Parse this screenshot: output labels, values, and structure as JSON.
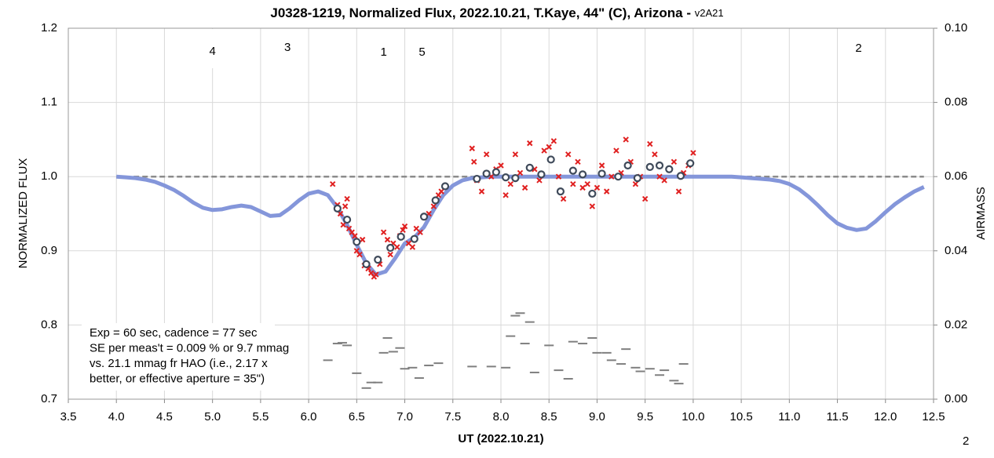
{
  "chart_data": {
    "type": "line",
    "title": "J0328-1219, Normalized Flux, 2022.10.21, T.Kaye, 44\" (C), Arizona - ",
    "subtitle": "v2A21",
    "x_label": "UT (2022.10.21)",
    "y_label": "NORMALIZED FLUX",
    "y2_label": "AIRMASS",
    "annotations": [
      "4",
      "3",
      "1",
      "5",
      "2"
    ],
    "notes": [
      "Exp = 60 sec, cadence = 77 sec",
      "SE per meas't = 0.009 % or 9.7 mmag",
      "vs. 21.1 mmag fr HAO (i.e., 2.17 x",
      "better, or effective aperture = 35\")"
    ],
    "footer": "2",
    "xlim": [
      3.5,
      12.5
    ],
    "xticks": [
      3.5,
      {
        "value": 4,
        "label": "4.0"
      },
      4.5,
      {
        "value": 5,
        "label": "5.0"
      },
      5.5,
      {
        "value": 6,
        "label": "6.0"
      },
      6.5,
      {
        "value": 7,
        "label": "7.0"
      },
      7.5,
      {
        "value": 8,
        "label": "8.0"
      },
      8.5,
      {
        "value": 9,
        "label": "9.0"
      },
      9.5,
      {
        "value": 10,
        "label": "10.0"
      },
      10.5,
      {
        "value": 11,
        "label": "11.0"
      },
      11.5,
      {
        "value": 12,
        "label": "12.0"
      },
      12.5
    ],
    "ylim": [
      0.7,
      1.2
    ],
    "yticks": [
      0.7,
      0.8,
      0.9,
      {
        "value": 1,
        "label": "1.0"
      },
      1.1,
      1.2
    ],
    "y2lim": [
      0,
      0.1
    ],
    "y2ticks": [
      {
        "value": 0,
        "label": "0.00"
      },
      {
        "value": 0.02,
        "label": "0.02"
      },
      {
        "value": 0.04,
        "label": "0.04"
      },
      {
        "value": 0.06,
        "label": "0.06"
      },
      {
        "value": 0.08,
        "label": "0.08"
      },
      {
        "value": 0.1,
        "label": "0.10"
      }
    ],
    "grid": true,
    "series": [
      {
        "style": "dashed",
        "color": "#8c8c8c",
        "x": [
          4.0,
          12.4
        ],
        "values": [
          1,
          1
        ]
      },
      {
        "style": "line",
        "color": "#8496da",
        "x": [
          4.0,
          4.1,
          4.2,
          4.3,
          4.4,
          4.5,
          4.6,
          4.7,
          4.8,
          4.9,
          5.0,
          5.1,
          5.2,
          5.3,
          5.4,
          5.5,
          5.6,
          5.7,
          5.8,
          5.9,
          6.0,
          6.1,
          6.2,
          6.3,
          6.4,
          6.5,
          6.6,
          6.7,
          6.8,
          6.9,
          7.0,
          7.1,
          7.2,
          7.3,
          7.4,
          7.5,
          7.6,
          7.7,
          7.8,
          7.9,
          8.5,
          9.0,
          9.5,
          10.0,
          10.4,
          10.5,
          10.6,
          10.7,
          10.8,
          10.9,
          11.0,
          11.1,
          11.2,
          11.3,
          11.4,
          11.5,
          11.6,
          11.7,
          11.8,
          11.9,
          12.0,
          12.1,
          12.2,
          12.3,
          12.4
        ],
        "values": [
          1.0,
          0.999,
          0.998,
          0.996,
          0.993,
          0.988,
          0.982,
          0.974,
          0.965,
          0.958,
          0.955,
          0.956,
          0.959,
          0.961,
          0.959,
          0.953,
          0.947,
          0.948,
          0.957,
          0.968,
          0.977,
          0.98,
          0.975,
          0.958,
          0.935,
          0.908,
          0.883,
          0.868,
          0.872,
          0.89,
          0.91,
          0.918,
          0.932,
          0.955,
          0.975,
          0.988,
          0.995,
          0.998,
          0.999,
          1.0,
          1.0,
          1.0,
          1.0,
          1.0,
          1.0,
          0.999,
          0.998,
          0.997,
          0.996,
          0.994,
          0.99,
          0.983,
          0.973,
          0.961,
          0.948,
          0.937,
          0.931,
          0.928,
          0.93,
          0.94,
          0.952,
          0.963,
          0.972,
          0.98,
          0.986
        ]
      },
      {
        "style": "x",
        "color": "#e02020",
        "x": [
          6.25,
          6.3,
          6.33,
          6.36,
          6.38,
          6.4,
          6.42,
          6.45,
          6.48,
          6.5,
          6.53,
          6.56,
          6.58,
          6.62,
          6.65,
          6.68,
          6.7,
          6.74,
          6.78,
          6.82,
          6.85,
          6.88,
          6.92,
          6.95,
          6.98,
          7.0,
          7.04,
          7.08,
          7.12,
          7.16,
          7.2,
          7.25,
          7.3,
          7.35,
          7.38,
          7.7,
          7.72,
          7.75,
          7.8,
          7.85,
          7.9,
          7.95,
          8.0,
          8.05,
          8.1,
          8.15,
          8.2,
          8.25,
          8.3,
          8.35,
          8.4,
          8.45,
          8.5,
          8.55,
          8.6,
          8.65,
          8.7,
          8.75,
          8.8,
          8.85,
          8.9,
          8.95,
          9.0,
          9.05,
          9.1,
          9.15,
          9.2,
          9.25,
          9.3,
          9.35,
          9.4,
          9.45,
          9.5,
          9.55,
          9.6,
          9.65,
          9.7,
          9.75,
          9.8,
          9.85,
          9.9,
          9.95,
          10.0
        ],
        "values": [
          0.99,
          0.962,
          0.95,
          0.935,
          0.96,
          0.97,
          0.93,
          0.925,
          0.92,
          0.9,
          0.895,
          0.915,
          0.88,
          0.876,
          0.87,
          0.865,
          0.868,
          0.882,
          0.925,
          0.915,
          0.895,
          0.91,
          0.905,
          0.92,
          0.928,
          0.933,
          0.91,
          0.905,
          0.93,
          0.925,
          0.945,
          0.95,
          0.96,
          0.975,
          0.98,
          1.038,
          1.02,
          0.995,
          0.98,
          1.03,
          1.0,
          1.01,
          1.015,
          0.975,
          0.99,
          1.03,
          1.005,
          0.985,
          1.045,
          1.01,
          0.995,
          1.035,
          1.04,
          1.048,
          1.0,
          0.97,
          1.03,
          0.99,
          1.02,
          0.985,
          0.99,
          0.96,
          0.985,
          1.015,
          0.98,
          1.0,
          1.035,
          1.005,
          1.05,
          1.02,
          0.99,
          1.0,
          0.97,
          1.044,
          1.03,
          1.0,
          0.995,
          1.01,
          1.02,
          0.98,
          1.005,
          1.015,
          1.032
        ]
      },
      {
        "style": "circle",
        "color": "#3f4a5a",
        "x": [
          6.3,
          6.4,
          6.5,
          6.6,
          6.72,
          6.85,
          6.96,
          7.1,
          7.2,
          7.32,
          7.42,
          7.75,
          7.85,
          7.95,
          8.05,
          8.15,
          8.3,
          8.42,
          8.52,
          8.62,
          8.75,
          8.85,
          8.95,
          9.05,
          9.22,
          9.32,
          9.42,
          9.55,
          9.65,
          9.75,
          9.87,
          9.97
        ],
        "values": [
          0.957,
          0.942,
          0.912,
          0.882,
          0.888,
          0.904,
          0.919,
          0.916,
          0.946,
          0.968,
          0.987,
          0.997,
          1.004,
          1.006,
          0.999,
          0.998,
          1.012,
          1.003,
          1.023,
          0.98,
          1.008,
          1.003,
          0.977,
          1.004,
          1.0,
          1.015,
          0.998,
          1.013,
          1.015,
          1.01,
          1.001,
          1.018
        ]
      },
      {
        "style": "dash",
        "color": "#7f7f7f",
        "axis": "y2",
        "x": [
          6.2,
          6.3,
          6.35,
          6.4,
          6.5,
          6.6,
          6.65,
          6.72,
          6.78,
          6.82,
          6.88,
          6.95,
          7.0,
          7.08,
          7.15,
          7.25,
          7.35,
          7.7,
          7.9,
          8.05,
          8.1,
          8.15,
          8.2,
          8.25,
          8.3,
          8.35,
          8.5,
          8.6,
          8.7,
          8.75,
          8.85,
          8.95,
          9.0,
          9.1,
          9.15,
          9.25,
          9.3,
          9.4,
          9.45,
          9.55,
          9.65,
          9.7,
          9.8,
          9.85,
          9.9
        ],
        "values": [
          0.0105,
          0.015,
          0.0152,
          0.0145,
          0.007,
          0.003,
          0.0045,
          0.0045,
          0.0125,
          0.0165,
          0.0128,
          0.0138,
          0.0082,
          0.0085,
          0.0057,
          0.0091,
          0.0097,
          0.0088,
          0.0088,
          0.0085,
          0.017,
          0.0225,
          0.0232,
          0.015,
          0.0208,
          0.0072,
          0.0145,
          0.0078,
          0.0055,
          0.0155,
          0.015,
          0.0165,
          0.0125,
          0.0125,
          0.0105,
          0.0095,
          0.0135,
          0.0085,
          0.0075,
          0.0082,
          0.0065,
          0.0078,
          0.005,
          0.0042,
          0.0095
        ]
      }
    ]
  }
}
